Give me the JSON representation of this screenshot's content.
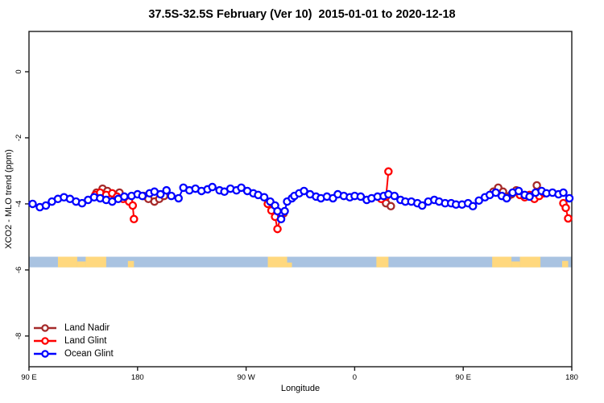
{
  "chart_data": {
    "type": "line",
    "title": "37.5S-32.5S February (Ver 10)  2015-01-01 to 2020-12-18",
    "xlabel": "Longitude",
    "ylabel": "XCO2 - MLO trend (ppm)",
    "axis_note": "x positions are degrees eastward from 90E; axis wraps 90E-180-90W-0-90E-180",
    "xlim": [
      0,
      450
    ],
    "ylim": [
      -8.93,
      1.22
    ],
    "grid": false,
    "frame_color": "#1a1a1a",
    "x_ticks": [
      {
        "pos": 0,
        "label": "90 E"
      },
      {
        "pos": 90,
        "label": "180"
      },
      {
        "pos": 180,
        "label": "90 W"
      },
      {
        "pos": 270,
        "label": "0"
      },
      {
        "pos": 360,
        "label": "90 E"
      },
      {
        "pos": 450,
        "label": "180"
      }
    ],
    "y_ticks": [
      {
        "pos": 0,
        "label": "0"
      },
      {
        "pos": -2,
        "label": "-2"
      },
      {
        "pos": -4,
        "label": "-4"
      },
      {
        "pos": -6,
        "label": "-6"
      },
      {
        "pos": -8,
        "label": "-8"
      }
    ],
    "legend_position": "bottom-left",
    "series": [
      {
        "name": "Land Nadir",
        "color": "#A52A2A",
        "segments": [
          [
            [
              56,
              -3.66
            ],
            [
              61,
              -3.54
            ],
            [
              65,
              -3.61
            ],
            [
              70,
              -3.71
            ],
            [
              75,
              -3.66
            ],
            [
              79,
              -3.8
            ]
          ],
          [
            [
              95,
              -3.76
            ],
            [
              99,
              -3.85
            ],
            [
              104,
              -3.93
            ],
            [
              108,
              -3.85
            ],
            [
              112,
              -3.76
            ]
          ],
          [
            [
              200,
              -3.95
            ],
            [
              203,
              -4.15
            ],
            [
              206,
              -4.24
            ],
            [
              208,
              -4.41
            ],
            [
              211,
              -4.29
            ]
          ],
          [
            [
              296,
              -3.98
            ],
            [
              300,
              -4.07
            ]
          ],
          [
            [
              385,
              -3.63
            ],
            [
              389,
              -3.51
            ],
            [
              393,
              -3.63
            ],
            [
              397,
              -3.78
            ],
            [
              400,
              -3.71
            ],
            [
              404,
              -3.59
            ]
          ],
          [
            [
              421,
              -3.44
            ]
          ]
        ]
      },
      {
        "name": "Land Glint",
        "color": "#FF0000",
        "segments": [
          [
            [
              55,
              -3.73
            ],
            [
              59,
              -3.66
            ],
            [
              64,
              -3.73
            ],
            [
              69,
              -3.68
            ],
            [
              73,
              -3.78
            ],
            [
              78,
              -3.85
            ],
            [
              83,
              -3.93
            ],
            [
              86,
              -4.05
            ],
            [
              87,
              -4.46
            ]
          ],
          [
            [
              198,
              -4.0
            ],
            [
              201,
              -4.2
            ],
            [
              204,
              -4.39
            ],
            [
              206,
              -4.76
            ],
            [
              209,
              -4.34
            ]
          ],
          [
            [
              292,
              -3.85
            ],
            [
              296,
              -3.78
            ],
            [
              298,
              -3.02
            ]
          ],
          [
            [
              407,
              -3.73
            ],
            [
              411,
              -3.8
            ],
            [
              415,
              -3.73
            ],
            [
              419,
              -3.85
            ],
            [
              423,
              -3.76
            ],
            [
              427,
              -3.68
            ]
          ],
          [
            [
              443,
              -3.98
            ],
            [
              445,
              -4.12
            ],
            [
              447,
              -4.44
            ]
          ]
        ]
      },
      {
        "name": "Ocean Glint",
        "color": "#0000FF",
        "segments": [
          [
            [
              3,
              -4.0
            ],
            [
              9,
              -4.1
            ],
            [
              14,
              -4.05
            ],
            [
              19,
              -3.93
            ],
            [
              24,
              -3.85
            ],
            [
              29,
              -3.8
            ],
            [
              34,
              -3.85
            ],
            [
              39,
              -3.93
            ],
            [
              44,
              -3.98
            ],
            [
              49,
              -3.88
            ],
            [
              54,
              -3.8
            ],
            [
              59,
              -3.83
            ],
            [
              64,
              -3.88
            ],
            [
              69,
              -3.93
            ],
            [
              74,
              -3.85
            ],
            [
              79,
              -3.78
            ],
            [
              85,
              -3.76
            ],
            [
              90,
              -3.71
            ],
            [
              94,
              -3.76
            ],
            [
              100,
              -3.68
            ],
            [
              104,
              -3.63
            ],
            [
              109,
              -3.71
            ],
            [
              114,
              -3.59
            ],
            [
              118,
              -3.76
            ],
            [
              124,
              -3.83
            ],
            [
              128,
              -3.51
            ],
            [
              133,
              -3.59
            ],
            [
              138,
              -3.54
            ],
            [
              143,
              -3.61
            ],
            [
              148,
              -3.56
            ],
            [
              152,
              -3.49
            ],
            [
              158,
              -3.59
            ],
            [
              162,
              -3.63
            ],
            [
              167,
              -3.54
            ],
            [
              172,
              -3.59
            ],
            [
              176,
              -3.51
            ],
            [
              181,
              -3.61
            ],
            [
              186,
              -3.68
            ],
            [
              190,
              -3.73
            ],
            [
              195,
              -3.8
            ],
            [
              200,
              -3.93
            ],
            [
              204,
              -4.05
            ],
            [
              206,
              -4.22
            ],
            [
              209,
              -4.46
            ],
            [
              212,
              -4.22
            ],
            [
              214,
              -3.93
            ],
            [
              218,
              -3.83
            ],
            [
              220,
              -3.76
            ],
            [
              224,
              -3.68
            ],
            [
              228,
              -3.61
            ],
            [
              233,
              -3.71
            ],
            [
              238,
              -3.78
            ],
            [
              242,
              -3.83
            ],
            [
              247,
              -3.78
            ],
            [
              252,
              -3.83
            ],
            [
              256,
              -3.71
            ],
            [
              261,
              -3.76
            ],
            [
              266,
              -3.8
            ],
            [
              270,
              -3.76
            ],
            [
              275,
              -3.78
            ],
            [
              280,
              -3.88
            ],
            [
              284,
              -3.83
            ],
            [
              289,
              -3.78
            ],
            [
              294,
              -3.76
            ],
            [
              298,
              -3.71
            ],
            [
              303,
              -3.76
            ],
            [
              308,
              -3.88
            ],
            [
              312,
              -3.93
            ],
            [
              317,
              -3.93
            ],
            [
              322,
              -3.98
            ],
            [
              326,
              -4.05
            ],
            [
              331,
              -3.93
            ],
            [
              336,
              -3.88
            ],
            [
              340,
              -3.93
            ],
            [
              345,
              -3.98
            ],
            [
              350,
              -3.98
            ],
            [
              354,
              -4.02
            ],
            [
              359,
              -4.02
            ],
            [
              364,
              -3.98
            ],
            [
              368,
              -4.07
            ],
            [
              373,
              -3.9
            ],
            [
              378,
              -3.8
            ],
            [
              382,
              -3.73
            ],
            [
              387,
              -3.66
            ],
            [
              392,
              -3.76
            ],
            [
              396,
              -3.83
            ],
            [
              401,
              -3.66
            ],
            [
              406,
              -3.61
            ],
            [
              411,
              -3.73
            ],
            [
              415,
              -3.78
            ],
            [
              420,
              -3.66
            ],
            [
              425,
              -3.61
            ],
            [
              429,
              -3.68
            ],
            [
              434,
              -3.66
            ],
            [
              439,
              -3.71
            ],
            [
              443,
              -3.66
            ],
            [
              448,
              -3.83
            ]
          ]
        ]
      }
    ],
    "map_band": {
      "description": "latitude-strip world map: ocean blue, land yellow",
      "ppm_top": -5.6,
      "ppm_bottom": -5.92,
      "ocean_color": "#A9C3E1",
      "land_color": "#FFD87E",
      "land_patches": [
        [
          24,
          40,
          1
        ],
        [
          40,
          47,
          0.55
        ],
        [
          47,
          64,
          1
        ],
        [
          82,
          87,
          0.6
        ],
        [
          198,
          214,
          1
        ],
        [
          214,
          218,
          0.45
        ],
        [
          288,
          298,
          1
        ],
        [
          384,
          400,
          1
        ],
        [
          400,
          407,
          0.55
        ],
        [
          407,
          424,
          1
        ],
        [
          442,
          447,
          0.6
        ]
      ]
    }
  }
}
